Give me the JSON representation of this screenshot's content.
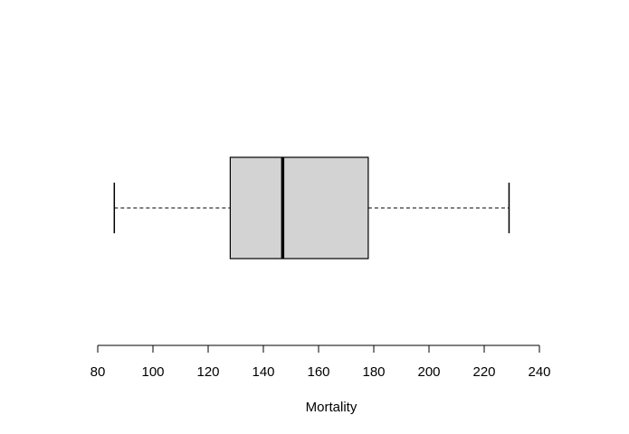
{
  "chart_data": {
    "type": "boxplot",
    "orientation": "horizontal",
    "xlabel": "Mortality",
    "xlim": [
      80,
      240
    ],
    "ticks": [
      80,
      100,
      120,
      140,
      160,
      180,
      200,
      220,
      240
    ],
    "tick_labels": [
      "80",
      "100",
      "120",
      "140",
      "160",
      "180",
      "200",
      "220",
      "240"
    ],
    "box": {
      "min": 86,
      "q1": 128,
      "median": 147,
      "q3": 178,
      "max": 229
    },
    "box_color": "#d3d3d3",
    "line_color": "#000000"
  }
}
